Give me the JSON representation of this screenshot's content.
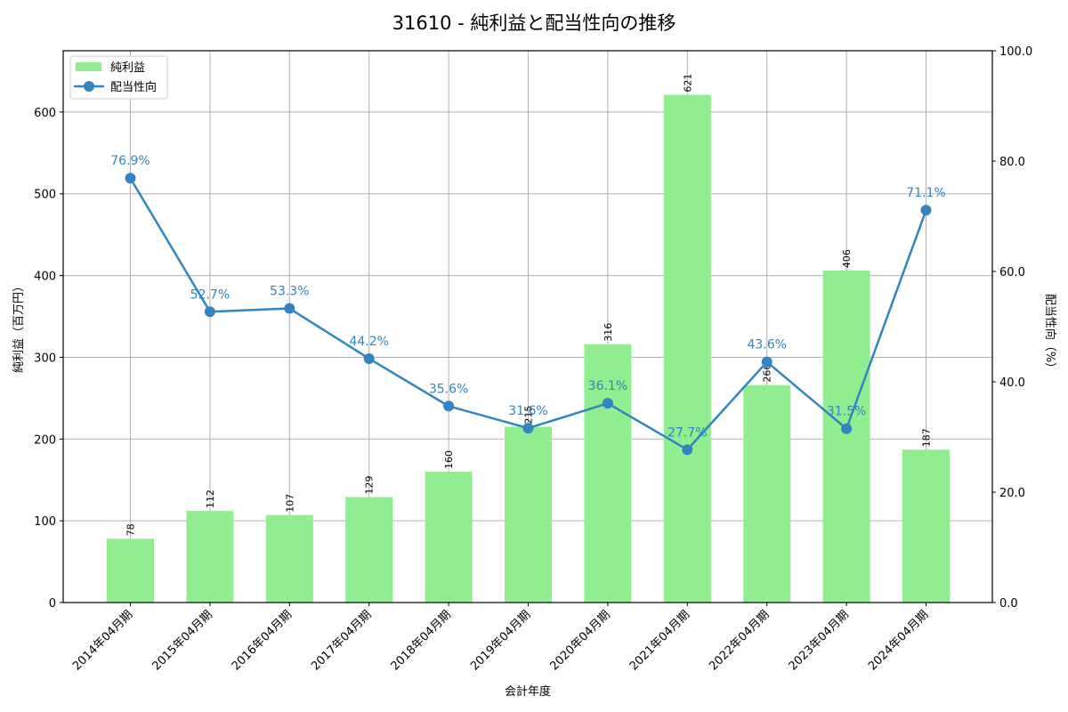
{
  "chart_data": {
    "type": "bar+line",
    "title": "31610 - 純利益と配当性向の推移",
    "xlabel": "会計年度",
    "ylabel": "純利益（百万円）",
    "y2label": "配当性向（%）",
    "categories": [
      "2014年04月期",
      "2015年04月期",
      "2016年04月期",
      "2017年04月期",
      "2018年04月期",
      "2019年04月期",
      "2020年04月期",
      "2021年04月期",
      "2022年04月期",
      "2023年04月期",
      "2024年04月期"
    ],
    "series": [
      {
        "name": "純利益",
        "type": "bar",
        "axis": "left",
        "color": "#90ee90",
        "values": [
          78,
          112,
          107,
          129,
          160,
          215,
          316,
          621,
          266,
          406,
          187
        ]
      },
      {
        "name": "配当性向",
        "type": "line",
        "axis": "right",
        "color": "#3185c2",
        "values": [
          76.9,
          52.7,
          53.3,
          44.2,
          35.6,
          31.6,
          36.1,
          27.7,
          43.6,
          31.5,
          71.1
        ]
      }
    ],
    "bar_labels": [
      "78",
      "112",
      "107",
      "129",
      "160",
      "215",
      "316",
      "621",
      "266",
      "406",
      "187"
    ],
    "line_labels": [
      "76.9%",
      "52.7%",
      "53.3%",
      "44.2%",
      "35.6%",
      "31.6%",
      "36.1%",
      "27.7%",
      "43.6%",
      "31.5%",
      "71.1%"
    ],
    "ylim": [
      0,
      675
    ],
    "y2lim": [
      0,
      100
    ],
    "yticks": [
      0,
      100,
      200,
      300,
      400,
      500,
      600
    ],
    "y2ticks": [
      "0.0",
      "20.0",
      "40.0",
      "60.0",
      "80.0",
      "100.0"
    ],
    "grid": true,
    "legend_position": "upper left"
  },
  "legend": {
    "bar_label": "純利益",
    "line_label": "配当性向"
  }
}
